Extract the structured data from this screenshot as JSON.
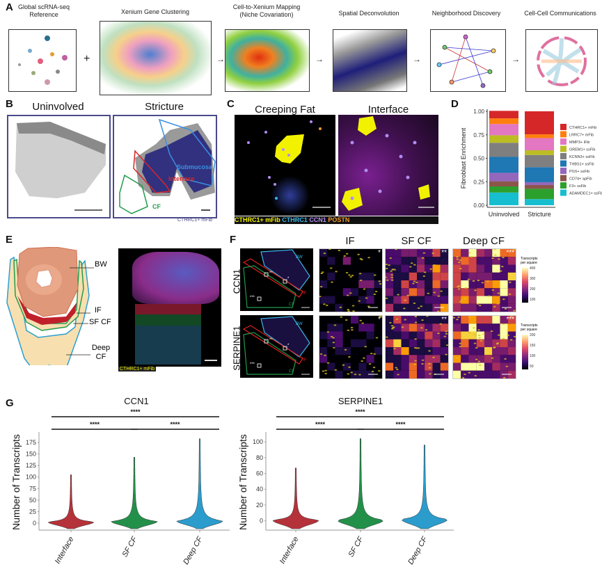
{
  "panels": {
    "A": {
      "label": "A",
      "steps": [
        "Global scRNA-seq Reference",
        "Xenium Gene Clustering",
        "Cell-to-Xenium Mapping (Niche Covariation)",
        "Spatial Deconvolution",
        "Neighborhood Discovery",
        "Cell-Cell Communications"
      ],
      "plus": "+",
      "arrow": "→"
    },
    "B": {
      "label": "B",
      "titles": [
        "Uninvolved",
        "Stricture"
      ],
      "regions": [
        "Submucosa",
        "Interface",
        "CF"
      ],
      "legend": "CTHRC1+ mFib",
      "colors": {
        "submucosa": "#3b8fe0",
        "interface": "#d62728",
        "cf": "#239b4c",
        "cells": "#1f1f7a"
      }
    },
    "C": {
      "label": "C",
      "titles": [
        "Creeping Fat",
        "Interface"
      ],
      "legend": [
        {
          "text": "CTHRC1+ mFib",
          "color": "#f2f200"
        },
        {
          "text": "CTHRC1",
          "color": "#3ab6e8"
        },
        {
          "text": "CCN1",
          "color": "#b08cf0"
        },
        {
          "text": "POSTN",
          "color": "#f39a2b"
        }
      ]
    },
    "D": {
      "label": "D"
    },
    "E": {
      "label": "E",
      "layers": [
        "BW",
        "IF",
        "SF CF",
        "Deep CF"
      ],
      "legend": "CTHRC1+ mFib"
    },
    "F": {
      "label": "F",
      "columns": [
        "IF",
        "SF CF",
        "Deep CF"
      ],
      "stars": [
        "*",
        "**",
        "***"
      ],
      "rows": [
        {
          "gene": "CCN1",
          "colorbar_title": "Transcripts per square",
          "ticks": [
            "400",
            "300",
            "200",
            "100"
          ]
        },
        {
          "gene": "SERPINE1",
          "colorbar_title": "Transcripts per square",
          "ticks": [
            "200",
            "150",
            "100",
            "50"
          ]
        }
      ],
      "overview_labels": {
        "bw": "BW",
        "if": "IF",
        "cf": "CF",
        "s1": "*",
        "s2": "**",
        "s3": "***"
      }
    },
    "G": {
      "label": "G"
    }
  },
  "chart_data": [
    {
      "type": "bar",
      "stacked": true,
      "panel": "D",
      "ylabel": "Fibroblast Enrichment",
      "ylim": [
        0,
        1
      ],
      "yticks": [
        "0.00",
        "0.25",
        "0.50",
        "0.75",
        "1.00"
      ],
      "categories": [
        "Uninvolved",
        "Stricture"
      ],
      "legend_placement": "right",
      "series": [
        {
          "name": "CTHRC1+ mFib",
          "color": "#d62728",
          "values": [
            0.08,
            0.245
          ]
        },
        {
          "name": "LRRC7+ mFib",
          "color": "#ff7f0e",
          "values": [
            0.06,
            0.04
          ]
        },
        {
          "name": "MMP3+ iFib",
          "color": "#e377c2",
          "values": [
            0.12,
            0.13
          ]
        },
        {
          "name": "GREM1+ ssFib",
          "color": "#bcbd22",
          "values": [
            0.08,
            0.05
          ]
        },
        {
          "name": "KCNN3+ ssFib",
          "color": "#7f7f7f",
          "values": [
            0.15,
            0.13
          ]
        },
        {
          "name": "THBS1+ ssFib",
          "color": "#1f77b4",
          "values": [
            0.17,
            0.16
          ]
        },
        {
          "name": "PI16+ ssFib",
          "color": "#9467bd",
          "values": [
            0.09,
            0.03
          ]
        },
        {
          "name": "CD74+ apFib",
          "color": "#8c564b",
          "values": [
            0.055,
            0.04
          ]
        },
        {
          "name": "F3+ ssFib",
          "color": "#2ca02c",
          "values": [
            0.065,
            0.11
          ]
        },
        {
          "name": "ADAMDEC1+ ssFib",
          "color": "#17becf",
          "values": [
            0.135,
            0.065
          ]
        }
      ]
    },
    {
      "type": "violin",
      "panel": "G",
      "title": "CCN1",
      "ylabel": "Number of Transcripts",
      "ylim": [
        -12,
        190
      ],
      "yticks": [
        "0",
        "25",
        "50",
        "75",
        "100",
        "125",
        "150",
        "175"
      ],
      "categories": [
        "Interface",
        "SF CF",
        "Deep CF"
      ],
      "colors": [
        "#b5323a",
        "#23904a",
        "#2b9ccc"
      ],
      "max": [
        105,
        143,
        183
      ],
      "mode": [
        3,
        4,
        5
      ],
      "significance": [
        {
          "from": 0,
          "to": 1,
          "label": "****"
        },
        {
          "from": 1,
          "to": 2,
          "label": "****"
        },
        {
          "from": 0,
          "to": 2,
          "label": "****"
        }
      ]
    },
    {
      "type": "violin",
      "panel": "G",
      "title": "SERPINE1",
      "ylabel": "Number of Transcripts",
      "ylim": [
        -10,
        108
      ],
      "yticks": [
        "0",
        "20",
        "40",
        "60",
        "80",
        "100"
      ],
      "categories": [
        "Interface",
        "SF CF",
        "Deep CF"
      ],
      "colors": [
        "#b5323a",
        "#23904a",
        "#2b9ccc"
      ],
      "max": [
        67,
        104,
        96
      ],
      "mode": [
        1,
        1,
        2
      ],
      "significance": [
        {
          "from": 0,
          "to": 1,
          "label": "****"
        },
        {
          "from": 1,
          "to": 2,
          "label": "****"
        },
        {
          "from": 0,
          "to": 2,
          "label": "****"
        }
      ]
    }
  ]
}
